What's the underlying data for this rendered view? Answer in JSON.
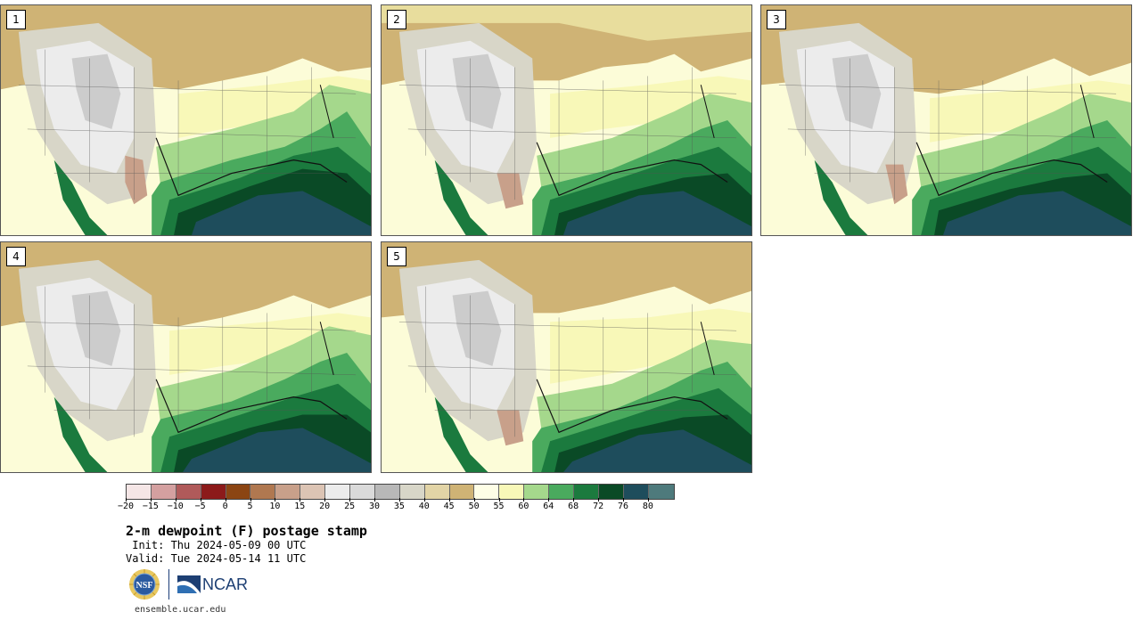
{
  "panels": [
    {
      "label": "1"
    },
    {
      "label": "2"
    },
    {
      "label": "3"
    },
    {
      "label": "4"
    },
    {
      "label": "5"
    }
  ],
  "colorbar": {
    "colors": [
      "#f5e6e6",
      "#d4a0a0",
      "#b05a5a",
      "#8c1a1a",
      "#8b4513",
      "#b07850",
      "#c8a08a",
      "#dcc4b4",
      "#ececec",
      "#dadada",
      "#b8b8b8",
      "#d8d6c8",
      "#e2d4a6",
      "#cfb375",
      "#fefee6",
      "#f8f8b8",
      "#a5d88c",
      "#4aaa5e",
      "#1b7a3e",
      "#0a4a26",
      "#1e4d5c",
      "#4e7a7c"
    ],
    "tick_labels": [
      "−20",
      "−15",
      "−10",
      "−5",
      "0",
      "5",
      "10",
      "15",
      "20",
      "25",
      "30",
      "35",
      "40",
      "45",
      "50",
      "55",
      "60",
      "64",
      "68",
      "72",
      "76",
      "80"
    ]
  },
  "title": "2-m dewpoint (F) postage stamp",
  "init_line": " Init: Thu 2024-05-09 00 UTC",
  "valid_line": "Valid: Tue 2024-05-14 11 UTC",
  "logos": {
    "nsf": "NSF",
    "ncar": "NCAR"
  },
  "site_url": "ensemble.ucar.edu"
}
